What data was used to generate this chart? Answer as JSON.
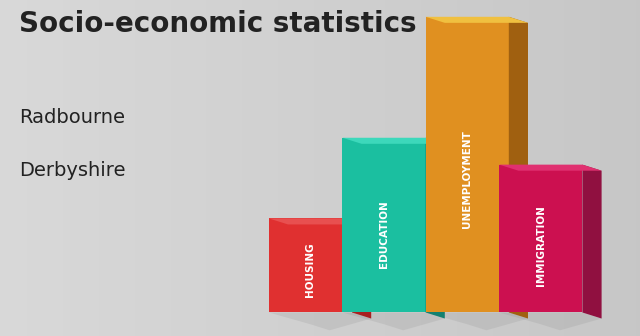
{
  "title_line1": "Socio-economic statistics",
  "title_line2": "Radbourne",
  "title_line3": "Derbyshire",
  "categories": [
    "HOUSING",
    "EDUCATION",
    "UNEMPLOYMENT",
    "IMMIGRATION"
  ],
  "values": [
    0.28,
    0.52,
    0.88,
    0.44
  ],
  "bar_colors_front": [
    "#E03030",
    "#1BBFA0",
    "#E09020",
    "#CC1050"
  ],
  "bar_colors_side": [
    "#A82020",
    "#138070",
    "#A06010",
    "#901040"
  ],
  "bar_colors_top": [
    "#E85050",
    "#3DD8BB",
    "#F0C040",
    "#E03070"
  ],
  "background_color_left": "#E8E8E8",
  "background_color_right": "#C8C8C8",
  "text_color_title": "#222222",
  "label_fontsize": 7.5,
  "title_fontsize": 20,
  "subtitle_fontsize": 14
}
